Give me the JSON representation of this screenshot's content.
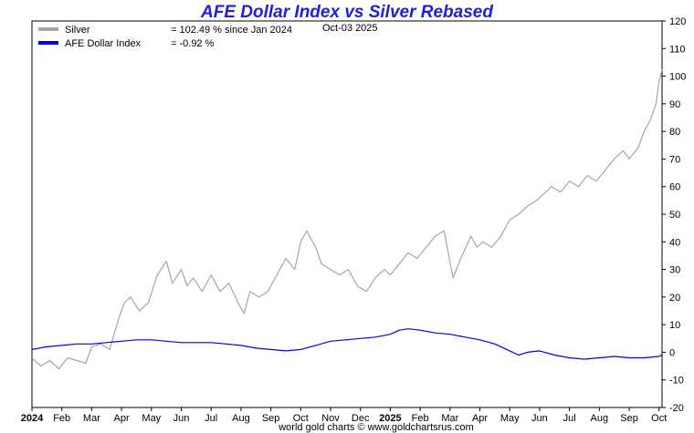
{
  "chart_data": {
    "type": "line",
    "title": "AFE Dollar Index vs Silver Rebased",
    "date_label": "Oct-03  2025",
    "footer": "world gold charts © www.goldchartsrus.com",
    "ylim": [
      -20,
      120
    ],
    "yticks": [
      -20,
      -10,
      0,
      10,
      20,
      30,
      40,
      50,
      60,
      70,
      80,
      90,
      100,
      110,
      120
    ],
    "xlim": [
      0,
      21.1
    ],
    "xticks": [
      {
        "label": "2024",
        "pos": 0,
        "bold": true
      },
      {
        "label": "Feb",
        "pos": 1
      },
      {
        "label": "Mar",
        "pos": 2
      },
      {
        "label": "Apr",
        "pos": 3
      },
      {
        "label": "May",
        "pos": 4
      },
      {
        "label": "Jun",
        "pos": 5
      },
      {
        "label": "Jul",
        "pos": 6
      },
      {
        "label": "Aug",
        "pos": 7
      },
      {
        "label": "Sep",
        "pos": 8
      },
      {
        "label": "Oct",
        "pos": 9
      },
      {
        "label": "Nov",
        "pos": 10
      },
      {
        "label": "Dec",
        "pos": 11
      },
      {
        "label": "2025",
        "pos": 12,
        "bold": true
      },
      {
        "label": "Feb",
        "pos": 13
      },
      {
        "label": "Mar",
        "pos": 14
      },
      {
        "label": "Apr",
        "pos": 15
      },
      {
        "label": "May",
        "pos": 16
      },
      {
        "label": "Jun",
        "pos": 17
      },
      {
        "label": "Jul",
        "pos": 18
      },
      {
        "label": "Aug",
        "pos": 19
      },
      {
        "label": "Sep",
        "pos": 20
      },
      {
        "label": "Oct",
        "pos": 21
      }
    ],
    "series": [
      {
        "name": "Silver",
        "legend_value": "= 102.49 % since Jan 2024",
        "color": "#a6a6a6",
        "x": [
          0,
          0.3,
          0.6,
          0.9,
          1.2,
          1.5,
          1.8,
          2.0,
          2.3,
          2.6,
          2.9,
          3.1,
          3.3,
          3.6,
          3.9,
          4.2,
          4.5,
          4.7,
          5.0,
          5.2,
          5.4,
          5.7,
          6.0,
          6.3,
          6.6,
          6.9,
          7.1,
          7.3,
          7.6,
          7.9,
          8.2,
          8.5,
          8.8,
          9.0,
          9.2,
          9.5,
          9.7,
          10.0,
          10.3,
          10.6,
          10.9,
          11.2,
          11.5,
          11.8,
          12.0,
          12.3,
          12.6,
          12.9,
          13.2,
          13.5,
          13.8,
          14.1,
          14.4,
          14.7,
          14.9,
          15.1,
          15.4,
          15.7,
          16.0,
          16.3,
          16.6,
          16.9,
          17.1,
          17.4,
          17.7,
          18.0,
          18.3,
          18.6,
          18.9,
          19.2,
          19.5,
          19.8,
          20.0,
          20.3,
          20.5,
          20.7,
          20.9,
          21.0,
          21.1
        ],
        "values": [
          -2,
          -5,
          -3,
          -6,
          -2,
          -3,
          -4,
          2,
          3,
          1,
          12,
          18,
          20,
          15,
          18,
          28,
          33,
          25,
          30,
          24,
          27,
          22,
          28,
          22,
          25,
          18,
          14,
          22,
          20,
          22,
          28,
          34,
          30,
          40,
          44,
          38,
          32,
          30,
          28,
          30,
          24,
          22,
          27,
          30,
          28,
          32,
          36,
          34,
          38,
          42,
          44,
          27,
          35,
          42,
          38,
          40,
          38,
          42,
          48,
          50,
          53,
          55,
          57,
          60,
          58,
          62,
          60,
          64,
          62,
          66,
          70,
          73,
          70,
          74,
          80,
          84,
          90,
          98,
          102.49
        ]
      },
      {
        "name": "AFE Dollar Index",
        "legend_value": "= -0.92 %",
        "color": "#0000ee",
        "x": [
          0,
          0.5,
          1.0,
          1.5,
          2.0,
          2.5,
          3.0,
          3.5,
          4.0,
          4.5,
          5.0,
          5.5,
          6.0,
          6.5,
          7.0,
          7.5,
          8.0,
          8.5,
          9.0,
          9.5,
          10.0,
          10.5,
          11.0,
          11.5,
          12.0,
          12.3,
          12.6,
          13.0,
          13.5,
          14.0,
          14.5,
          15.0,
          15.5,
          16.0,
          16.3,
          16.6,
          17.0,
          17.5,
          18.0,
          18.5,
          19.0,
          19.5,
          20.0,
          20.5,
          21.0,
          21.1
        ],
        "values": [
          1,
          2,
          2.5,
          3,
          3,
          3.5,
          4,
          4.5,
          4.5,
          4,
          3.5,
          3.5,
          3.5,
          3,
          2.5,
          1.5,
          1,
          0.5,
          1,
          2.5,
          4,
          4.5,
          5,
          5.5,
          6.5,
          8,
          8.5,
          8,
          7,
          6.5,
          5.5,
          4.5,
          3,
          0.5,
          -1,
          0,
          0.5,
          -1,
          -2,
          -2.5,
          -2,
          -1.5,
          -2,
          -2,
          -1.5,
          -0.92
        ]
      }
    ]
  }
}
